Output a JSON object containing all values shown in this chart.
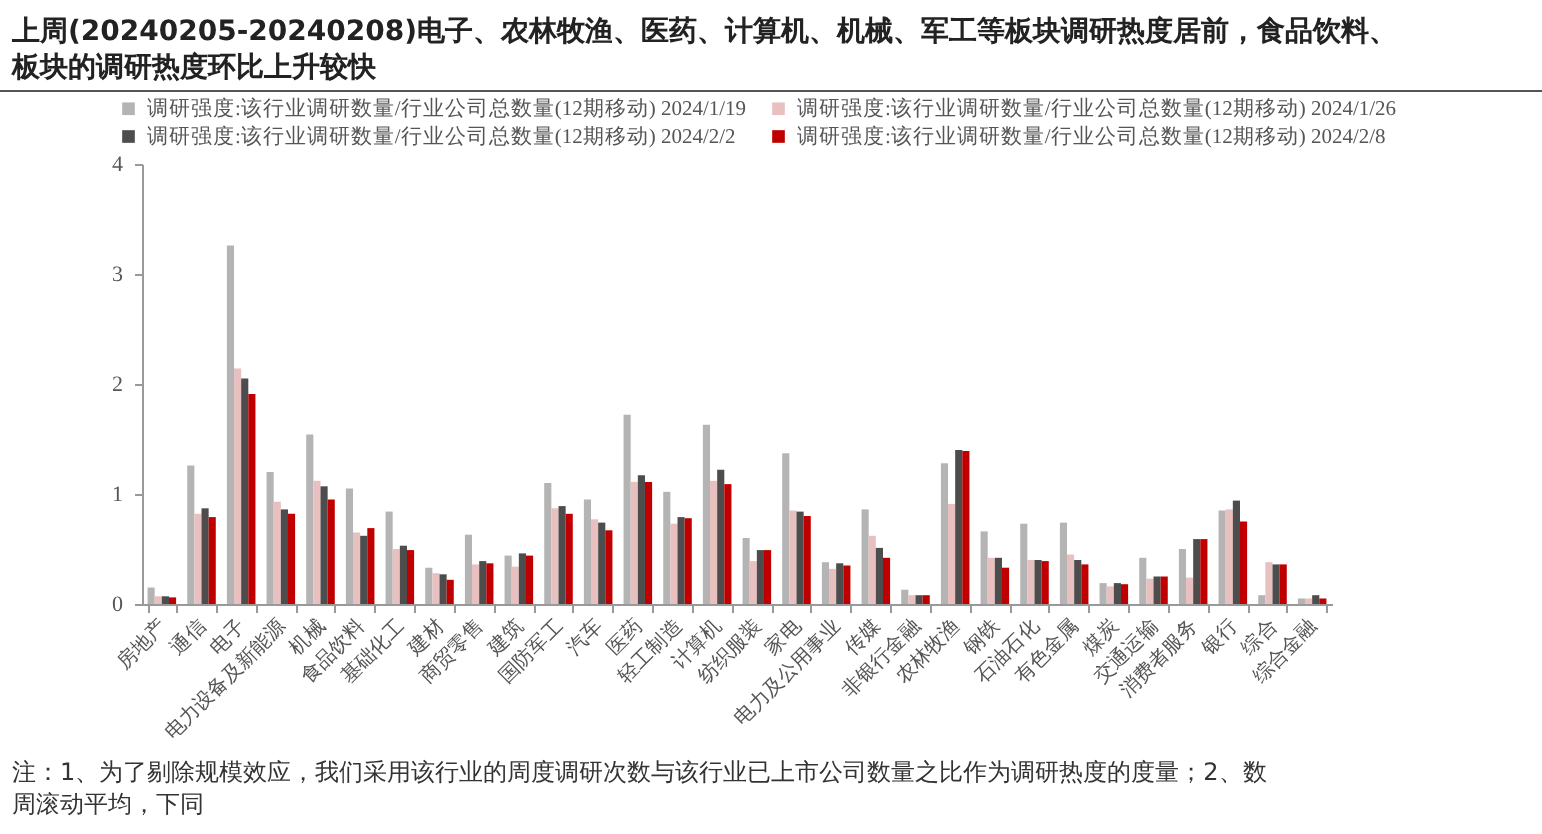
{
  "chart_data": {
    "type": "bar",
    "title": "上周(20240205-20240208)电子、农林牧渔、医药、计算机、机械、军工等板块调研热度居前，食品饮料、板块的调研热度环比上升较快",
    "categories": [
      "房地产",
      "通信",
      "电子",
      "电力设备及新能源",
      "机械",
      "食品饮料",
      "基础化工",
      "建材",
      "商贸零售",
      "建筑",
      "国防军工",
      "汽车",
      "医药",
      "轻工制造",
      "计算机",
      "纺织服装",
      "家电",
      "电力及公用事业",
      "传媒",
      "非银行金融",
      "农林牧渔",
      "钢铁",
      "石油石化",
      "有色金属",
      "煤炭",
      "交通运输",
      "消费者服务",
      "银行",
      "综合",
      "综合金融"
    ],
    "series": [
      {
        "name": "调研强度:该行业调研数量/行业公司总数量(12期移动) 2024/1/19",
        "color": "#b4b4b4",
        "values": [
          0.15,
          1.26,
          3.26,
          1.2,
          1.54,
          1.05,
          0.84,
          0.33,
          0.63,
          0.44,
          1.1,
          0.95,
          1.72,
          1.02,
          1.63,
          0.6,
          1.37,
          0.38,
          0.86,
          0.13,
          1.28,
          0.66,
          0.73,
          0.74,
          0.19,
          0.42,
          0.5,
          0.85,
          0.08,
          0.05
        ]
      },
      {
        "name": "调研强度:该行业调研数量/行业公司总数量(12期移动) 2024/1/26",
        "color": "#e8c0c0",
        "values": [
          0.07,
          0.82,
          2.14,
          0.93,
          1.12,
          0.65,
          0.5,
          0.28,
          0.36,
          0.34,
          0.87,
          0.77,
          1.11,
          0.73,
          1.12,
          0.39,
          0.85,
          0.32,
          0.62,
          0.08,
          0.91,
          0.42,
          0.4,
          0.45,
          0.16,
          0.23,
          0.24,
          0.86,
          0.38,
          0.05
        ]
      },
      {
        "name": "调研强度:该行业调研数量/行业公司总数量(12期移动) 2024/2/2",
        "color": "#4d4d4d",
        "values": [
          0.07,
          0.87,
          2.05,
          0.86,
          1.07,
          0.62,
          0.53,
          0.27,
          0.39,
          0.46,
          0.89,
          0.74,
          1.17,
          0.79,
          1.22,
          0.49,
          0.84,
          0.37,
          0.51,
          0.08,
          1.4,
          0.42,
          0.4,
          0.4,
          0.19,
          0.25,
          0.59,
          0.94,
          0.36,
          0.08
        ]
      },
      {
        "name": "调研强度:该行业调研数量/行业公司总数量(12期移动) 2024/2/8",
        "color": "#c00000",
        "values": [
          0.06,
          0.79,
          1.91,
          0.82,
          0.95,
          0.69,
          0.49,
          0.22,
          0.37,
          0.44,
          0.82,
          0.67,
          1.11,
          0.78,
          1.09,
          0.49,
          0.8,
          0.35,
          0.42,
          0.08,
          1.39,
          0.33,
          0.39,
          0.36,
          0.18,
          0.25,
          0.59,
          0.75,
          0.36,
          0.05
        ]
      }
    ],
    "ylim": [
      0,
      4
    ],
    "yticks": [
      0,
      1,
      2,
      3,
      4
    ],
    "legend": "top",
    "annotations": [
      "注：1、为了剔除规模效应，我们采用该行业的周度调研次数与该行业已上市公司数量之比作为调研热度的度量；2、数",
      "周滚动平均，下同"
    ]
  }
}
